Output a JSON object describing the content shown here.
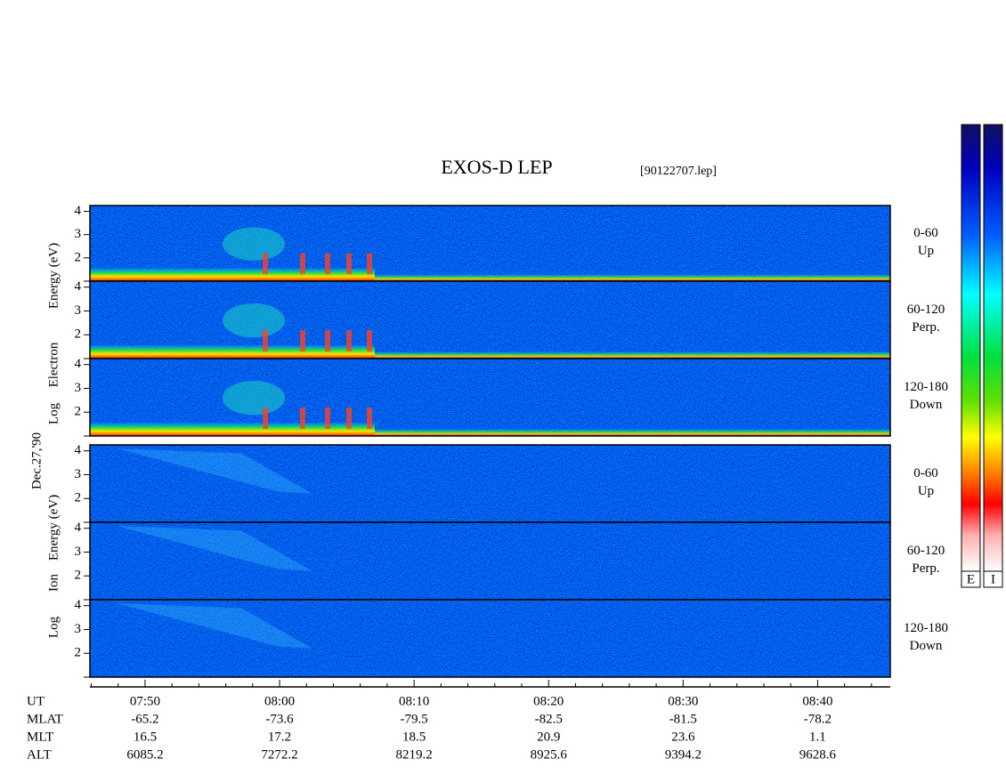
{
  "title": "EXOS-D LEP",
  "file": "[90122707.lep]",
  "date_label": "Dec.27,'90",
  "electron": {
    "label": [
      "Log",
      "Electron",
      "Energy (eV)"
    ],
    "panels": [
      {
        "pitch": "0-60",
        "direction": "Up"
      },
      {
        "pitch": "60-120",
        "direction": "Perp."
      },
      {
        "pitch": "120-180",
        "direction": "Down"
      }
    ]
  },
  "ion": {
    "label": [
      "Log",
      "Ion",
      "Energy (eV)"
    ],
    "panels": [
      {
        "pitch": "0-60",
        "direction": "Up"
      },
      {
        "pitch": "60-120",
        "direction": "Perp."
      },
      {
        "pitch": "120-180",
        "direction": "Down"
      }
    ]
  },
  "ylim": [
    1,
    4.25
  ],
  "yticks": [
    2,
    3,
    4
  ],
  "minor_yticks": [
    1
  ],
  "xlim": [
    465.9,
    525.4
  ],
  "xticks": [
    {
      "value": 470,
      "label": "07:50"
    },
    {
      "value": 480,
      "label": "08:00"
    },
    {
      "value": 490,
      "label": "08:10"
    },
    {
      "value": 500,
      "label": "08:20"
    },
    {
      "value": 510,
      "label": "08:30"
    },
    {
      "value": 520,
      "label": "08:40"
    }
  ],
  "minor_xticks": [
    466,
    468,
    472,
    474,
    476,
    478,
    482,
    484,
    486,
    488,
    492,
    494,
    496,
    498,
    502,
    504,
    506,
    508,
    512,
    514,
    516,
    518,
    522,
    524
  ],
  "x_label": "UT",
  "orbit_rows": [
    {
      "name": "MLAT",
      "values": [
        -65.2,
        -73.6,
        -79.5,
        -82.5,
        -81.5,
        -78.2
      ]
    },
    {
      "name": "MLT",
      "values": [
        16.5,
        17.2,
        18.5,
        20.9,
        23.6,
        1.1
      ]
    },
    {
      "name": "ALT",
      "values": [
        6085.2,
        7272.2,
        8219.2,
        8925.6,
        9394.2,
        9628.6
      ]
    }
  ],
  "colorbars": [
    "E",
    "I"
  ]
}
